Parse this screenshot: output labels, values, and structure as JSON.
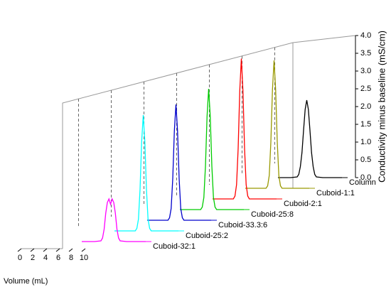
{
  "chart_data": {
    "type": "waterfall",
    "x_label": "Volume (mL)",
    "y_label": "Conductivity minus baseline (mS/cm)",
    "x": [
      0,
      1,
      2,
      3,
      3.25,
      3.5,
      3.75,
      4,
      4.25,
      4.5,
      4.75,
      5,
      5.25,
      5.5,
      5.75,
      6,
      7,
      8,
      9,
      10
    ],
    "xlim": [
      0,
      10
    ],
    "xticks": [
      0,
      2,
      4,
      6,
      8,
      10
    ],
    "ylim": [
      0,
      4
    ],
    "yticks": [
      {
        "value": 0,
        "label": "0.0"
      },
      {
        "value": 0.5,
        "label": "0.5"
      },
      {
        "value": 1,
        "label": "1.0"
      },
      {
        "value": 1.5,
        "label": "1.5"
      },
      {
        "value": 2,
        "label": "2.0"
      },
      {
        "value": 2.5,
        "label": "2.5"
      },
      {
        "value": 3,
        "label": "3.0"
      },
      {
        "value": 3.5,
        "label": "3.5"
      },
      {
        "value": 4,
        "label": "4.0"
      }
    ],
    "series": [
      {
        "name": "Cuboid-32:1",
        "color": "#ff00ff",
        "values": [
          0,
          0,
          0,
          0.02,
          0.1,
          0.35,
          0.8,
          1.1,
          1.2,
          1.05,
          1.2,
          1.1,
          0.8,
          0.35,
          0.1,
          0.02,
          0,
          0,
          0,
          0
        ]
      },
      {
        "name": "Cuboid-25:2",
        "color": "#00ffff",
        "values": [
          0,
          0,
          0,
          0,
          0,
          0.07,
          0.33,
          1.17,
          2.51,
          3.26,
          2.51,
          1.17,
          0.33,
          0.07,
          0,
          0,
          0,
          0,
          0,
          0
        ]
      },
      {
        "name": "Cuboid-33.3:6",
        "color": "#0000cc",
        "values": [
          0,
          0,
          0,
          0,
          0,
          0.07,
          0.33,
          1.17,
          2.51,
          3.26,
          2.51,
          1.17,
          0.33,
          0.07,
          0,
          0,
          0,
          0,
          0,
          0
        ]
      },
      {
        "name": "Cuboid-25:8",
        "color": "#00cc00",
        "values": [
          0,
          0,
          0,
          0,
          0,
          0.07,
          0.34,
          1.22,
          2.62,
          3.4,
          2.62,
          1.22,
          0.34,
          0.07,
          0,
          0,
          0,
          0,
          0,
          0
        ]
      },
      {
        "name": "Cuboid-2:1",
        "color": "#ff0000",
        "values": [
          0,
          0,
          0,
          0,
          0,
          0.08,
          0.4,
          1.42,
          3.04,
          3.95,
          3.04,
          1.42,
          0.4,
          0.08,
          0,
          0,
          0,
          0,
          0,
          0
        ]
      },
      {
        "name": "Cuboid-1:1",
        "color": "#999900",
        "values": [
          0,
          0,
          0,
          0,
          0,
          0.07,
          0.36,
          1.3,
          2.77,
          3.6,
          2.77,
          1.3,
          0.36,
          0.07,
          0,
          0,
          0,
          0,
          0,
          0
        ]
      },
      {
        "name": "Column",
        "color": "#000000",
        "values": [
          0,
          0,
          0,
          0.02,
          0.09,
          0.31,
          0.7,
          1.33,
          1.92,
          2.18,
          1.92,
          1.33,
          0.7,
          0.31,
          0.09,
          0.02,
          0,
          0,
          0,
          0
        ]
      }
    ]
  }
}
